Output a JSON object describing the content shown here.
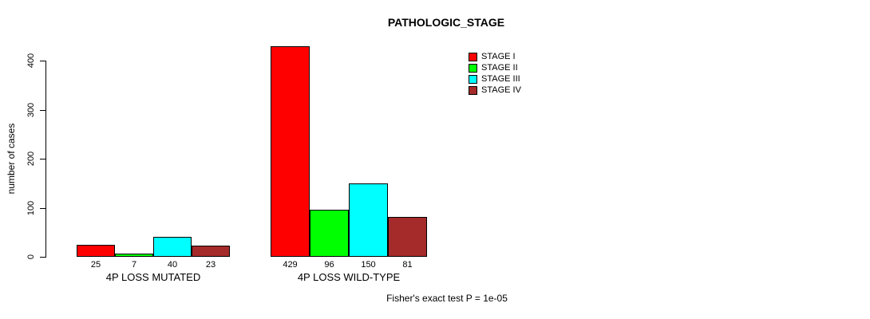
{
  "chart_data": {
    "type": "bar",
    "title": "PATHOLOGIC_STAGE",
    "ylabel": "number of cases",
    "ylim": [
      0,
      400
    ],
    "yticks": [
      0,
      100,
      200,
      300,
      400
    ],
    "grid": false,
    "legend_position": "top-right",
    "series": [
      {
        "name": "STAGE I",
        "color": "#FF0000",
        "values": [
          25,
          429
        ]
      },
      {
        "name": "STAGE II",
        "color": "#00FF00",
        "values": [
          7,
          96
        ]
      },
      {
        "name": "STAGE III",
        "color": "#00FFFF",
        "values": [
          40,
          150
        ]
      },
      {
        "name": "STAGE IV",
        "color": "#A52A2A",
        "values": [
          23,
          81
        ]
      }
    ],
    "groups": [
      {
        "label": "4P LOSS MUTATED",
        "values": [
          25,
          7,
          40,
          23
        ]
      },
      {
        "label": "4P LOSS WILD-TYPE",
        "values": [
          429,
          96,
          150,
          81
        ]
      }
    ],
    "footnote": "Fisher's exact test P = 1e-05"
  }
}
